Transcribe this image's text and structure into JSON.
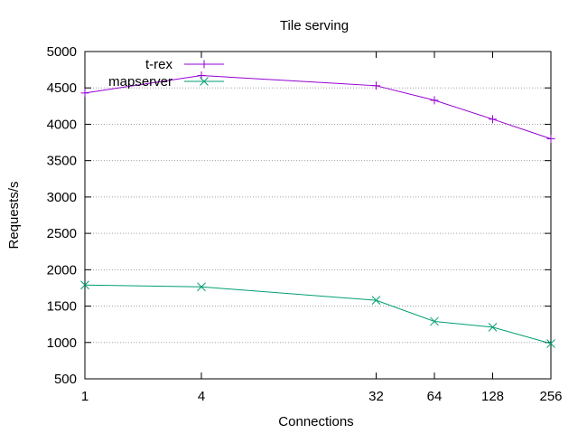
{
  "chart_data": {
    "type": "line",
    "title": "Tile serving",
    "xlabel": "Connections",
    "ylabel": "Requests/s",
    "x_scale": "log2",
    "xlim": [
      1,
      256
    ],
    "ylim": [
      500,
      5000
    ],
    "xticks": [
      1,
      4,
      32,
      64,
      128,
      256
    ],
    "yticks": [
      500,
      1000,
      1500,
      2000,
      2500,
      3000,
      3500,
      4000,
      4500,
      5000
    ],
    "grid": true,
    "legend_position": "top-left",
    "series": [
      {
        "name": "t-rex",
        "color": "#9400d3",
        "marker": "plus",
        "x": [
          1,
          4,
          32,
          64,
          128,
          256
        ],
        "y": [
          4430,
          4670,
          4530,
          4330,
          4070,
          3800
        ]
      },
      {
        "name": "mapserver",
        "color": "#009e73",
        "marker": "cross",
        "x": [
          1,
          4,
          32,
          64,
          128,
          256
        ],
        "y": [
          1790,
          1765,
          1580,
          1290,
          1210,
          985
        ]
      }
    ]
  }
}
